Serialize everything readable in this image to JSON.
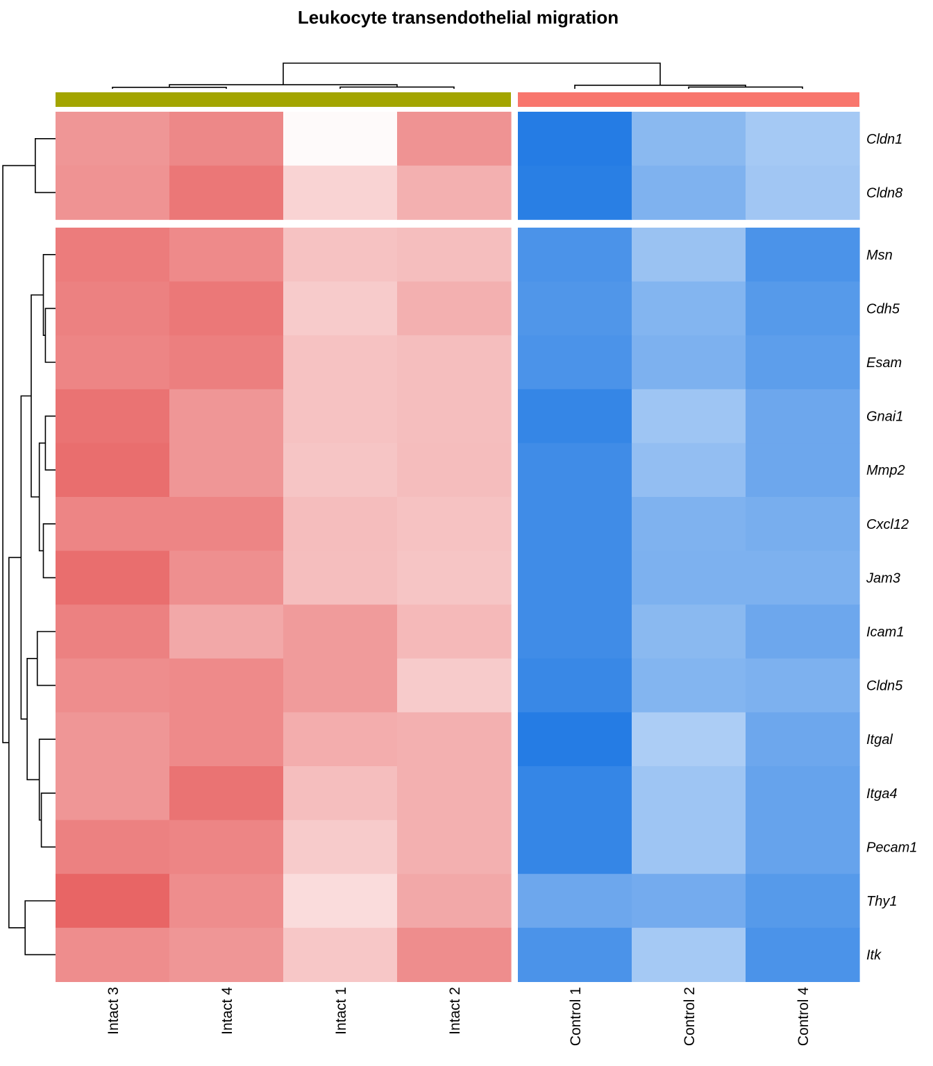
{
  "chart_data": {
    "type": "heatmap",
    "title": "Leukocyte transendothelial migration",
    "columns": [
      "Intact 3",
      "Intact 4",
      "Intact 1",
      "Intact 2",
      "Control 1",
      "Control 2",
      "Control 4"
    ],
    "column_groups": [
      {
        "name": "",
        "columns": [
          "Intact 3",
          "Intact 4",
          "Intact 1",
          "Intact 2"
        ],
        "color": "#A3A500"
      },
      {
        "name": "",
        "columns": [
          "Control 1",
          "Control 2",
          "Control 4"
        ],
        "color": "#F8766D"
      }
    ],
    "rows": [
      "Cldn1",
      "Cldn8",
      "Msn",
      "Cdh5",
      "Esam",
      "Gnai1",
      "Mmp2",
      "Cxcl12",
      "Jam3",
      "Icam1",
      "Cldn5",
      "Itgal",
      "Itga4",
      "Pecam1",
      "Thy1",
      "Itk"
    ],
    "row_split_after": [
      "Cldn8"
    ],
    "color_scale": {
      "low": "#1E78E3",
      "mid": "#FFFFFF",
      "high": "#E55050",
      "range": [
        -1,
        1
      ]
    },
    "values": [
      [
        0.6,
        0.68,
        0.03,
        0.62,
        -0.97,
        -0.52,
        -0.4
      ],
      [
        0.62,
        0.78,
        0.25,
        0.45,
        -0.95,
        -0.57,
        -0.42
      ],
      [
        0.75,
        0.67,
        0.35,
        0.37,
        -0.8,
        -0.45,
        -0.8
      ],
      [
        0.72,
        0.77,
        0.3,
        0.45,
        -0.78,
        -0.55,
        -0.75
      ],
      [
        0.7,
        0.73,
        0.35,
        0.37,
        -0.8,
        -0.58,
        -0.72
      ],
      [
        0.8,
        0.6,
        0.35,
        0.37,
        -0.9,
        -0.43,
        -0.65
      ],
      [
        0.83,
        0.6,
        0.33,
        0.38,
        -0.85,
        -0.48,
        -0.65
      ],
      [
        0.7,
        0.7,
        0.38,
        0.35,
        -0.85,
        -0.57,
        -0.6
      ],
      [
        0.83,
        0.64,
        0.37,
        0.33,
        -0.85,
        -0.58,
        -0.58
      ],
      [
        0.72,
        0.5,
        0.57,
        0.4,
        -0.85,
        -0.52,
        -0.65
      ],
      [
        0.65,
        0.67,
        0.57,
        0.3,
        -0.88,
        -0.55,
        -0.58
      ],
      [
        0.6,
        0.67,
        0.47,
        0.45,
        -0.97,
        -0.37,
        -0.65
      ],
      [
        0.6,
        0.8,
        0.37,
        0.45,
        -0.9,
        -0.43,
        -0.68
      ],
      [
        0.72,
        0.7,
        0.3,
        0.45,
        -0.9,
        -0.43,
        -0.68
      ],
      [
        0.88,
        0.65,
        0.2,
        0.5,
        -0.65,
        -0.62,
        -0.75
      ],
      [
        0.65,
        0.6,
        0.32,
        0.65,
        -0.8,
        -0.4,
        -0.8
      ]
    ]
  }
}
